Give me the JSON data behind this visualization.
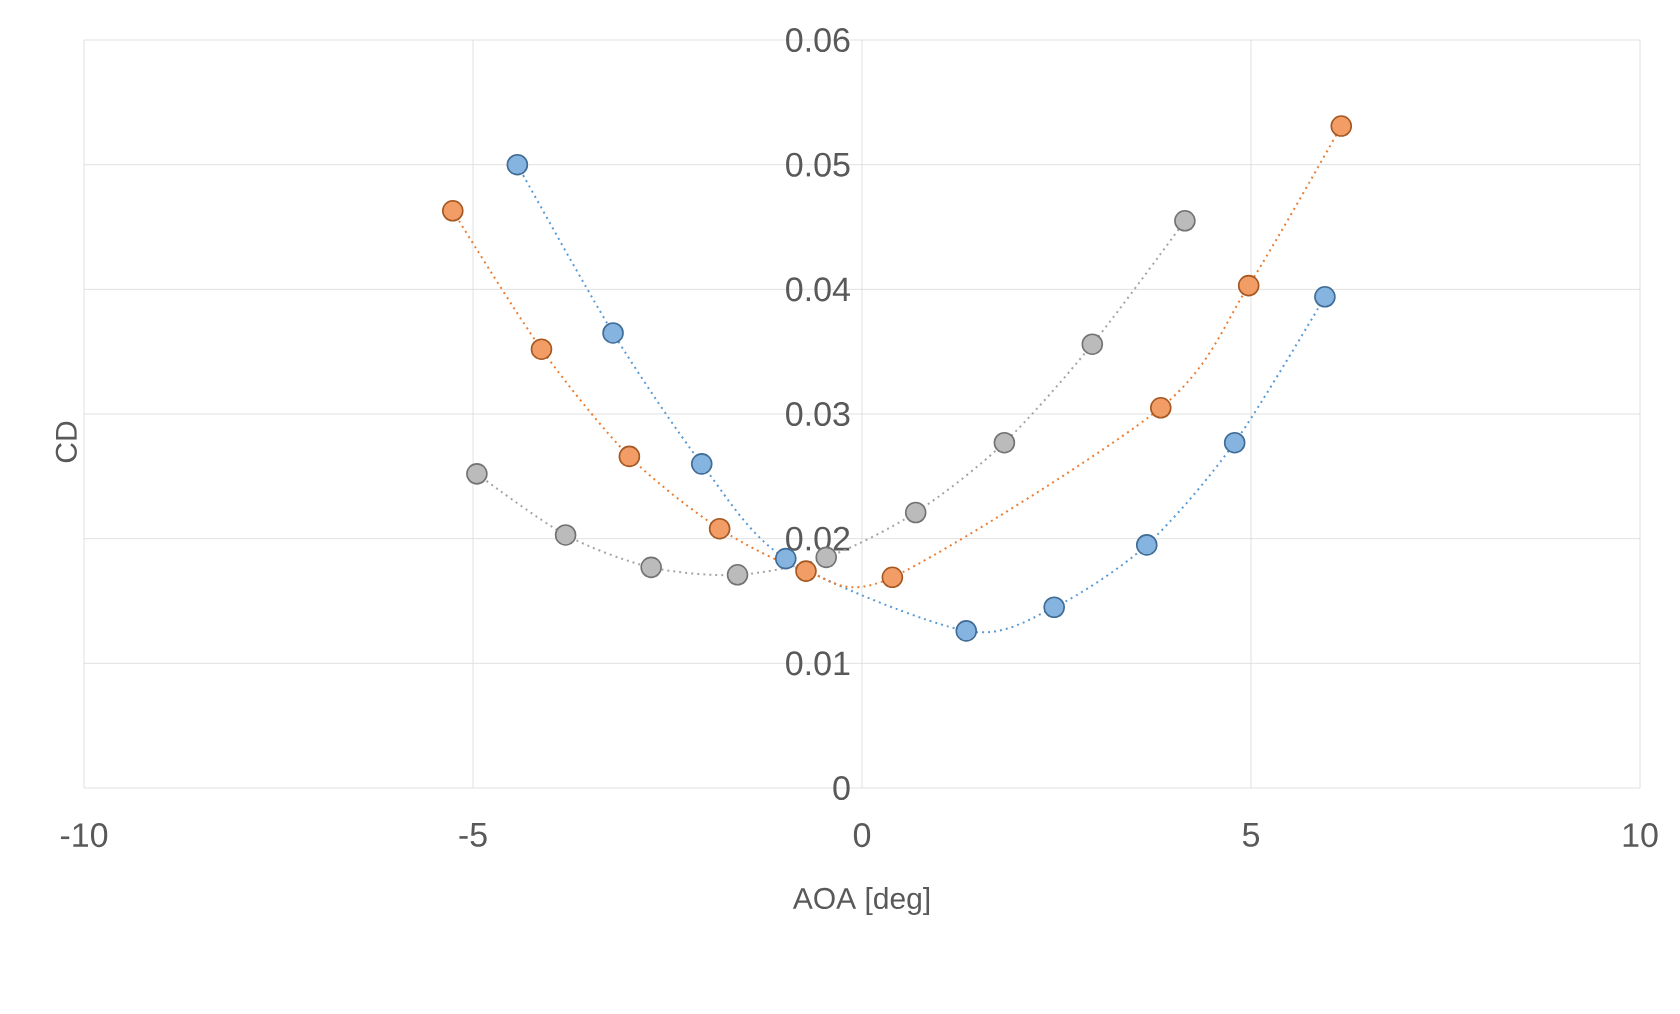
{
  "chart_data": {
    "type": "line",
    "xlabel": "AOA [deg]",
    "ylabel": "CD",
    "xlim": [
      -10,
      10
    ],
    "ylim": [
      0,
      0.06
    ],
    "xticks": [
      -10,
      -5,
      0,
      5,
      10
    ],
    "yticks": [
      0,
      0.01,
      0.02,
      0.03,
      0.04,
      0.05,
      0.06
    ],
    "grid": true,
    "marker": "circle",
    "line_style": "dotted",
    "series": [
      {
        "color": "#5b9bd5",
        "x": [
          -4.43,
          -3.2,
          -2.06,
          -0.98,
          1.34,
          2.47,
          3.66,
          4.79,
          5.95
        ],
        "values": [
          0.05,
          0.0365,
          0.026,
          0.0184,
          0.0126,
          0.0145,
          0.0195,
          0.0277,
          0.0394
        ]
      },
      {
        "color": "#ed7d31",
        "x": [
          -5.26,
          -4.12,
          -2.99,
          -1.83,
          -0.72,
          0.39,
          3.84,
          4.97,
          6.16
        ],
        "values": [
          0.0463,
          0.0352,
          0.0266,
          0.0208,
          0.0174,
          0.0169,
          0.0305,
          0.0403,
          0.0531
        ]
      },
      {
        "color": "#a5a5a5",
        "x": [
          -4.95,
          -3.81,
          -2.71,
          -1.6,
          -0.46,
          0.69,
          1.83,
          2.96,
          4.15
        ],
        "values": [
          0.0252,
          0.0203,
          0.0177,
          0.0171,
          0.0185,
          0.0221,
          0.0277,
          0.0356,
          0.0455
        ]
      }
    ]
  }
}
